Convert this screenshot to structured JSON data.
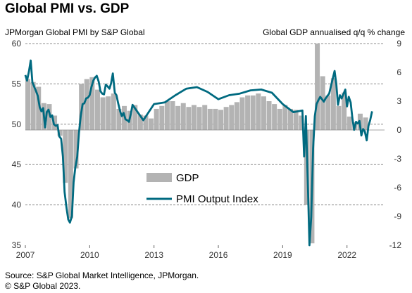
{
  "title": "Global PMI vs. GDP",
  "left_axis_caption": "JPMorgan Global PMI by S&P Global",
  "right_axis_caption": "Global GDP annualised q/q % change",
  "source_line1": "Source: S&P Global Market Intelligence, JPMorgan.",
  "source_line2": "© S&P Global 2023.",
  "colors": {
    "gdp_bar": "#b3b3b3",
    "pmi_line": "#006a80",
    "gridline": "#8c8c8c"
  },
  "chart_data": {
    "type": "bar+line",
    "x_ticks": [
      "2007",
      "2010",
      "2013",
      "2016",
      "2019",
      "2022"
    ],
    "left_axis": {
      "min": 35,
      "max": 60,
      "ticks": [
        60,
        55,
        50,
        45,
        40,
        35
      ]
    },
    "right_axis": {
      "min": -12,
      "max": 9,
      "ticks": [
        9,
        6,
        3,
        0,
        -3,
        -6,
        -9,
        -12
      ]
    },
    "x_range": [
      2007.0,
      2023.75
    ],
    "legend": {
      "placement": "center",
      "entries": [
        "GDP",
        "PMI Output Index"
      ]
    },
    "gdp_series": {
      "name": "GDP",
      "quarters": [
        "2007Q1",
        "2007Q2",
        "2007Q3",
        "2007Q4",
        "2008Q1",
        "2008Q2",
        "2008Q3",
        "2008Q4",
        "2009Q1",
        "2009Q2",
        "2009Q3",
        "2009Q4",
        "2010Q1",
        "2010Q2",
        "2010Q3",
        "2010Q4",
        "2011Q1",
        "2011Q2",
        "2011Q3",
        "2011Q4",
        "2012Q1",
        "2012Q2",
        "2012Q3",
        "2012Q4",
        "2013Q1",
        "2013Q2",
        "2013Q3",
        "2013Q4",
        "2014Q1",
        "2014Q2",
        "2014Q3",
        "2014Q4",
        "2015Q1",
        "2015Q2",
        "2015Q3",
        "2015Q4",
        "2016Q1",
        "2016Q2",
        "2016Q3",
        "2016Q4",
        "2017Q1",
        "2017Q2",
        "2017Q3",
        "2017Q4",
        "2018Q1",
        "2018Q2",
        "2018Q3",
        "2018Q4",
        "2019Q1",
        "2019Q2",
        "2019Q3",
        "2019Q4",
        "2020Q1",
        "2020Q2",
        "2020Q3",
        "2020Q4",
        "2021Q1",
        "2021Q2",
        "2021Q3",
        "2021Q4",
        "2022Q1",
        "2022Q2",
        "2022Q3",
        "2022Q4"
      ],
      "values": [
        5.3,
        5.0,
        4.5,
        2.8,
        2.7,
        1.5,
        -0.6,
        -5.5,
        -9.2,
        -4.0,
        4.8,
        5.3,
        5.5,
        4.2,
        3.4,
        3.5,
        3.8,
        2.2,
        2.5,
        2.0,
        2.6,
        1.6,
        1.5,
        1.2,
        2.2,
        2.5,
        3.0,
        3.0,
        2.5,
        2.8,
        2.4,
        2.6,
        2.4,
        2.6,
        2.2,
        2.2,
        2.1,
        2.4,
        2.6,
        2.9,
        3.4,
        3.6,
        3.6,
        3.8,
        3.5,
        3.0,
        2.7,
        2.2,
        2.6,
        2.2,
        2.1,
        1.5,
        -7.8,
        -11.8,
        9.0,
        5.6,
        3.6,
        5.4,
        2.5,
        3.9,
        1.4,
        0.8,
        1.7,
        1.3
      ]
    },
    "pmi_series": {
      "name": "PMI Output Index",
      "x": [
        2007.0,
        2007.08,
        2007.17,
        2007.25,
        2007.33,
        2007.42,
        2007.5,
        2007.58,
        2007.67,
        2007.75,
        2007.83,
        2007.92,
        2008.0,
        2008.08,
        2008.17,
        2008.25,
        2008.33,
        2008.42,
        2008.5,
        2008.58,
        2008.67,
        2008.75,
        2008.83,
        2008.92,
        2009.0,
        2009.08,
        2009.17,
        2009.25,
        2009.33,
        2009.42,
        2009.5,
        2009.58,
        2009.67,
        2009.75,
        2009.83,
        2009.92,
        2010.0,
        2010.08,
        2010.17,
        2010.25,
        2010.33,
        2010.42,
        2010.5,
        2010.58,
        2010.67,
        2010.75,
        2010.83,
        2010.92,
        2011.0,
        2011.08,
        2011.17,
        2011.25,
        2011.33,
        2011.42,
        2011.5,
        2011.58,
        2011.67,
        2011.75,
        2011.83,
        2011.92,
        2012.0,
        2012.5,
        2012.75,
        2013.0,
        2013.5,
        2014.0,
        2014.5,
        2015.0,
        2015.5,
        2016.0,
        2016.5,
        2017.0,
        2017.5,
        2018.0,
        2018.5,
        2019.0,
        2019.5,
        2019.92,
        2020.0,
        2020.08,
        2020.17,
        2020.25,
        2020.33,
        2020.42,
        2020.5,
        2020.58,
        2020.67,
        2020.75,
        2020.92,
        2021.0,
        2021.17,
        2021.33,
        2021.42,
        2021.5,
        2021.58,
        2021.67,
        2021.75,
        2021.92,
        2022.0,
        2022.08,
        2022.17,
        2022.25,
        2022.33,
        2022.42,
        2022.5,
        2022.58,
        2022.67,
        2022.75,
        2022.83,
        2022.92,
        2023.0,
        2023.08,
        2023.17
      ],
      "values": [
        56.1,
        55.4,
        56.6,
        57.9,
        55.2,
        54.6,
        54.1,
        53.5,
        52.1,
        51.6,
        52.0,
        49.6,
        51.5,
        51.8,
        50.9,
        51.1,
        50.0,
        49.8,
        49.9,
        48.5,
        48.2,
        46.0,
        41.6,
        39.6,
        38.2,
        37.8,
        38.6,
        42.8,
        44.6,
        46.0,
        48.9,
        51.0,
        52.5,
        52.6,
        53.2,
        53.3,
        53.6,
        54.6,
        55.4,
        55.8,
        56.0,
        55.3,
        54.1,
        53.8,
        53.7,
        54.9,
        54.7,
        54.4,
        55.1,
        56.3,
        53.9,
        53.6,
        52.6,
        51.6,
        51.0,
        51.4,
        50.6,
        50.5,
        50.3,
        51.3,
        52.4,
        50.5,
        51.5,
        52.5,
        52.7,
        53.6,
        54.4,
        54.6,
        54.0,
        53.1,
        53.6,
        53.8,
        54.2,
        54.3,
        53.9,
        52.5,
        51.5,
        51.7,
        46.0,
        51.0,
        43.0,
        30.0,
        38.5,
        47.0,
        51.0,
        52.5,
        53.0,
        53.4,
        52.8,
        53.2,
        53.8,
        55.6,
        56.6,
        55.0,
        52.4,
        53.6,
        53.2,
        54.3,
        52.2,
        53.4,
        52.7,
        50.8,
        49.3,
        50.3,
        50.1,
        50.4,
        48.6,
        49.4,
        49.1,
        48.0,
        49.8,
        50.5,
        51.6
      ]
    }
  }
}
